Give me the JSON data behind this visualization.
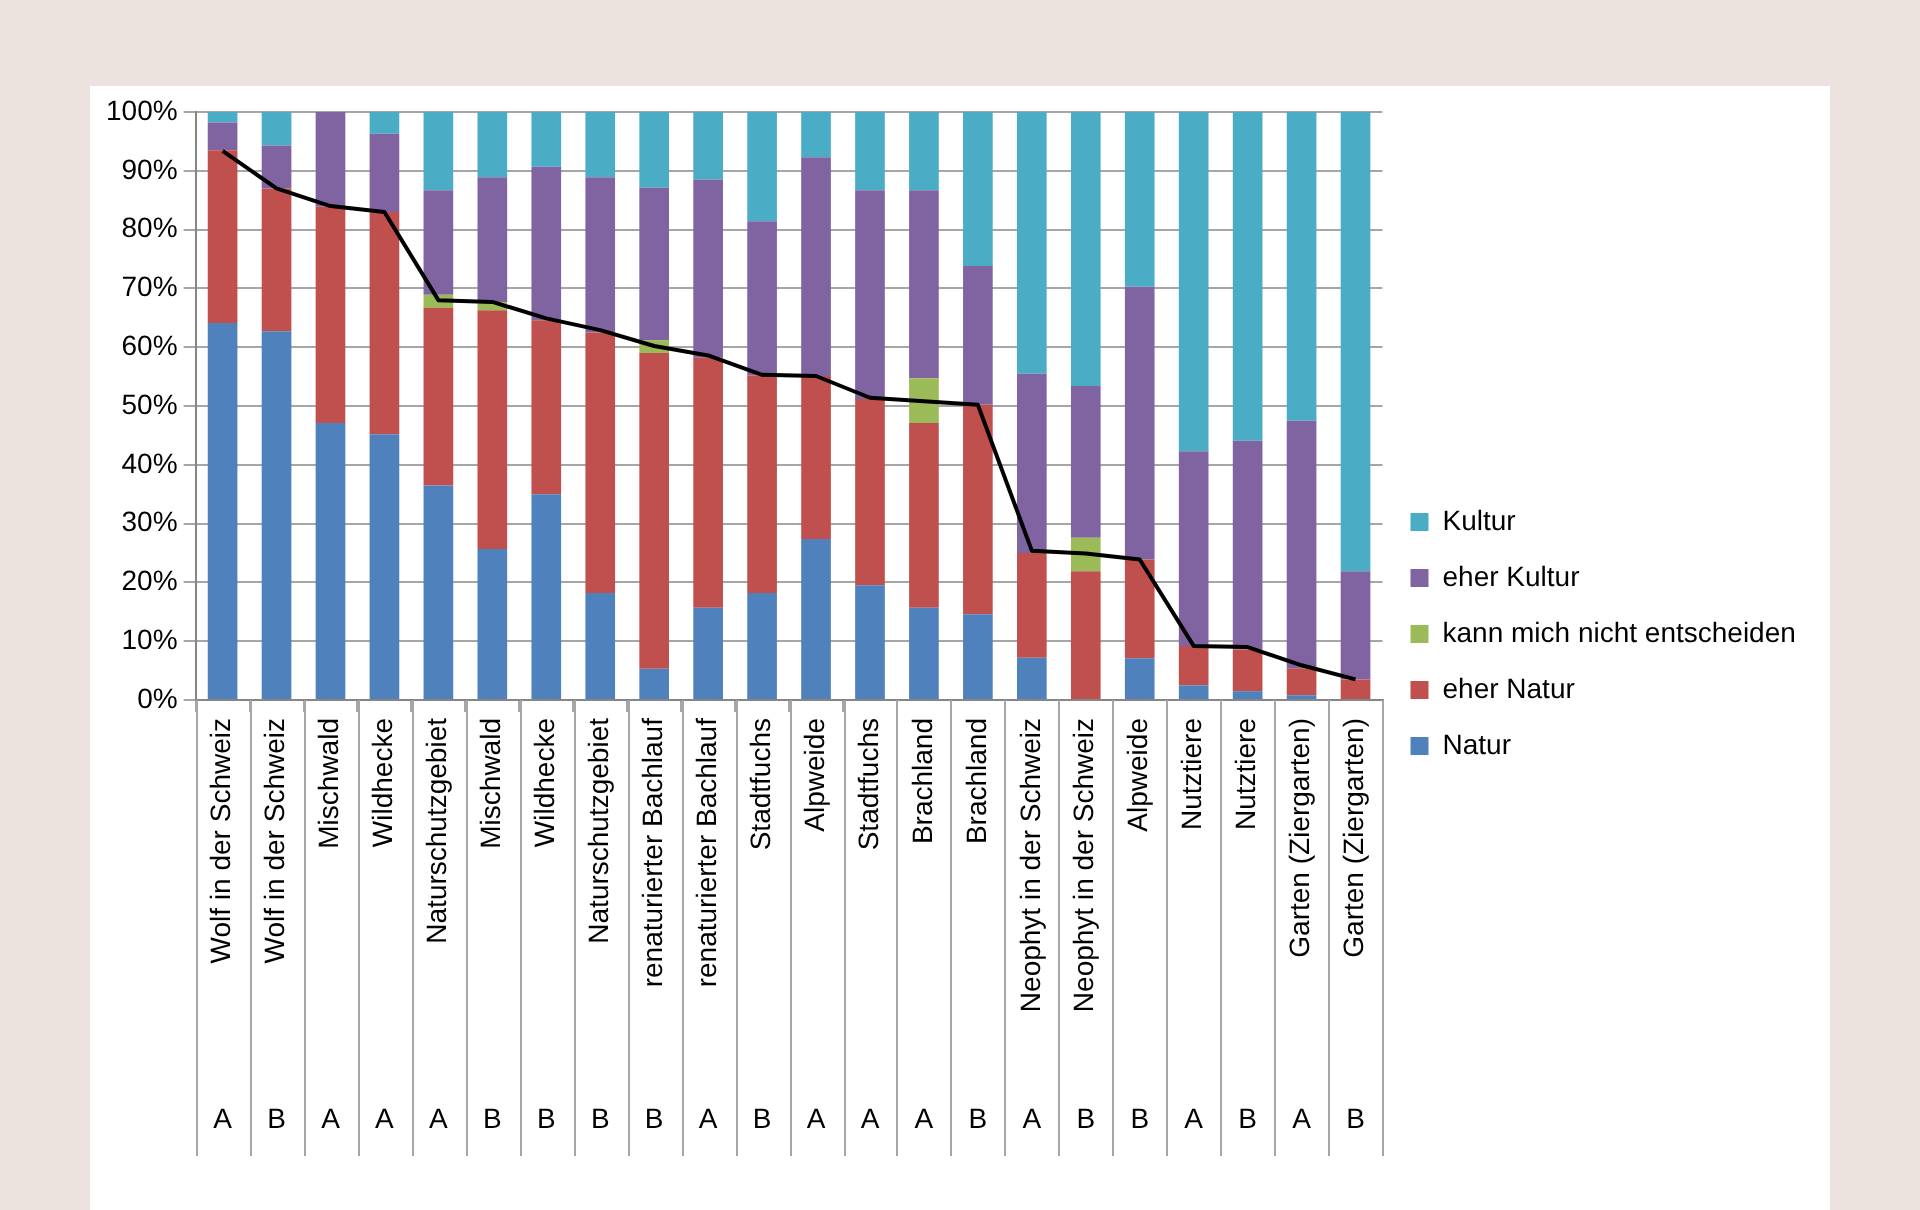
{
  "chart_data": {
    "type": "bar",
    "stacked": true,
    "categories": [
      "Wolf in der Schweiz",
      "Wolf in der Schweiz",
      "Mischwald",
      "Wildhecke",
      "Naturschutzgebiet",
      "Mischwald",
      "Wildhecke",
      "Naturschutzgebiet",
      "renaturierter Bachlauf",
      "renaturierter Bachlauf",
      "Stadtfuchs",
      "Alpweide",
      "Stadtfuchs",
      "Brachland",
      "Brachland",
      "Neophyt in der Schweiz",
      "Neophyt in der Schweiz",
      "Alpweide",
      "Nutztiere",
      "Nutztiere",
      "Garten (Ziergarten)",
      "Garten (Ziergarten)"
    ],
    "annotations": [
      "A",
      "B",
      "A",
      "A",
      "A",
      "B",
      "B",
      "B",
      "B",
      "A",
      "B",
      "A",
      "A",
      "A",
      "B",
      "A",
      "B",
      "B",
      "A",
      "B",
      "A",
      "B"
    ],
    "series": [
      {
        "name": "Natur",
        "color": "#4f81bd",
        "values": [
          64.1,
          62.7,
          47.1,
          45.2,
          36.5,
          25.7,
          35.0,
          18.2,
          5.3,
          15.7,
          18.2,
          27.4,
          19.5,
          15.7,
          14.6,
          7.2,
          0,
          7.1,
          2.5,
          1.5,
          0.8,
          0
        ]
      },
      {
        "name": "eher Natur",
        "color": "#c0504d",
        "values": [
          29.4,
          24.3,
          36.8,
          37.8,
          30.2,
          40.6,
          29.6,
          44.3,
          53.7,
          42.5,
          37.0,
          27.7,
          31.7,
          31.4,
          35.6,
          17.8,
          21.9,
          16.8,
          6.7,
          7.1,
          4.6,
          3.5
        ]
      },
      {
        "name": "kann mich nicht entscheiden",
        "color": "#9bbb59",
        "values": [
          0,
          0,
          0,
          0,
          2.2,
          1.4,
          0,
          0,
          2.2,
          0,
          0,
          0,
          0,
          7.6,
          0,
          0,
          5.7,
          0,
          0,
          0,
          0,
          0
        ]
      },
      {
        "name": "eher Kultur",
        "color": "#8064a2",
        "values": [
          4.7,
          7.3,
          16.1,
          13.3,
          17.8,
          21.2,
          26.1,
          26.4,
          25.9,
          30.3,
          26.2,
          37.2,
          35.5,
          32.0,
          23.6,
          30.5,
          25.8,
          46.4,
          33.1,
          35.5,
          42.1,
          18.4
        ]
      },
      {
        "name": "Kultur",
        "color": "#4bacc6",
        "values": [
          1.9,
          5.7,
          0,
          3.7,
          13.3,
          11.1,
          9.3,
          11.1,
          12.9,
          11.5,
          18.6,
          7.7,
          13.3,
          13.3,
          26.2,
          44.5,
          46.6,
          29.7,
          57.7,
          55.9,
          52.5,
          78.1
        ]
      },
      {
        "type": "line",
        "color": "#000000",
        "marker": "none",
        "values": [
          93.4,
          87.0,
          84.0,
          83.0,
          68.0,
          67.7,
          64.9,
          62.9,
          60.2,
          58.6,
          55.3,
          55.1,
          51.4,
          50.8,
          50.2,
          25.4,
          24.9,
          23.9,
          9.2,
          9.0,
          5.9,
          3.5
        ]
      }
    ],
    "ylim": [
      0,
      100
    ],
    "yticks": [
      {
        "value": 0,
        "label": "0%"
      },
      {
        "value": 10,
        "label": "10%"
      },
      {
        "value": 20,
        "label": "20%"
      },
      {
        "value": 30,
        "label": "30%"
      },
      {
        "value": 40,
        "label": "40%"
      },
      {
        "value": 50,
        "label": "50%"
      },
      {
        "value": 60,
        "label": "60%"
      },
      {
        "value": 70,
        "label": "70%"
      },
      {
        "value": 80,
        "label": "80%"
      },
      {
        "value": 90,
        "label": "90%"
      },
      {
        "value": 100,
        "label": "100%"
      }
    ],
    "grid": "y",
    "legend": "right"
  }
}
